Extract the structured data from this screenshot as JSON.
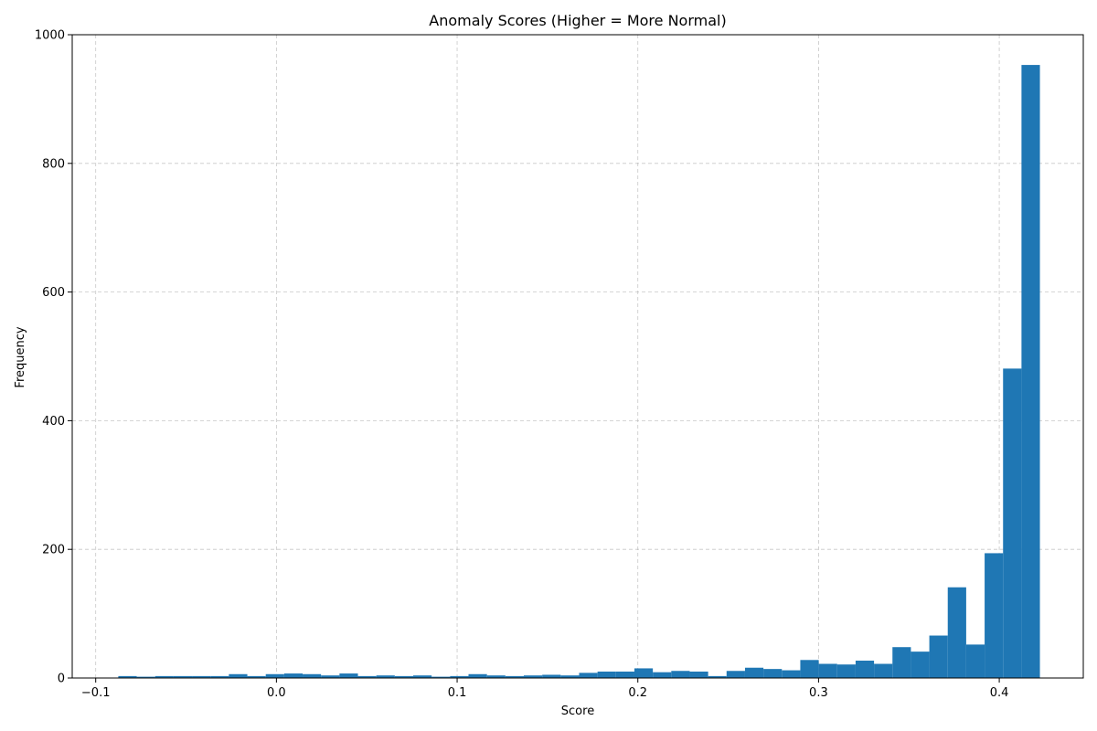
{
  "chart_data": {
    "type": "bar",
    "title": "Anomaly Scores (Higher = More Normal)",
    "xlabel": "Score",
    "ylabel": "Frequency",
    "xlim": [
      -0.113,
      0.4465
    ],
    "ylim": [
      0,
      1000
    ],
    "xticks": [
      -0.1,
      0.0,
      0.1,
      0.2,
      0.3,
      0.4
    ],
    "xtick_labels": [
      "−0.1",
      "0.0",
      "0.1",
      "0.2",
      "0.3",
      "0.4"
    ],
    "yticks": [
      0,
      200,
      400,
      600,
      800,
      1000
    ],
    "ytick_labels": [
      "0",
      "200",
      "400",
      "600",
      "800",
      "1000"
    ],
    "grid": true,
    "bar_color": "#1f77b4",
    "bin_start": -0.0875,
    "bin_width": 0.0102,
    "values": [
      3,
      2,
      3,
      3,
      3,
      3,
      6,
      3,
      6,
      7,
      6,
      4,
      7,
      3,
      4,
      3,
      4,
      2,
      3,
      6,
      4,
      3,
      4,
      5,
      4,
      8,
      10,
      10,
      15,
      9,
      11,
      10,
      3,
      11,
      16,
      14,
      12,
      28,
      22,
      21,
      27,
      22,
      48,
      41,
      66,
      141,
      52,
      194,
      481,
      953
    ]
  }
}
